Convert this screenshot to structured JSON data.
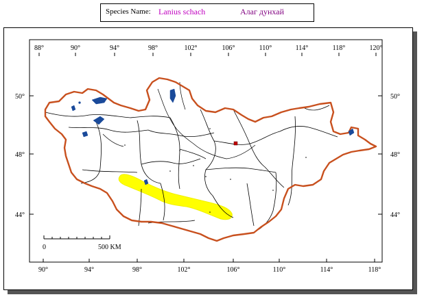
{
  "header": {
    "label": "Species Name:",
    "species_latin": "Lanius schach",
    "species_local": "Алаг дунхай"
  },
  "map": {
    "top_ticks": [
      "88°",
      "90°",
      "94°",
      "98°",
      "102°",
      "106°",
      "110°",
      "114°",
      "118°",
      "120°"
    ],
    "bottom_ticks": [
      "90°",
      "94°",
      "98°",
      "102°",
      "106°",
      "110°",
      "114°",
      "118°"
    ],
    "left_ticks": [
      "50°",
      "48°",
      "44°"
    ],
    "right_ticks": [
      "50°",
      "48°",
      "44°"
    ],
    "scale_bar": {
      "start_label": "0",
      "end_label": "500 KM"
    },
    "colors": {
      "border": "#c8501e",
      "water": "#1a4a9a",
      "range": "#ffff00",
      "admin_lines": "#000000",
      "capital_marker": "#c00000"
    }
  }
}
